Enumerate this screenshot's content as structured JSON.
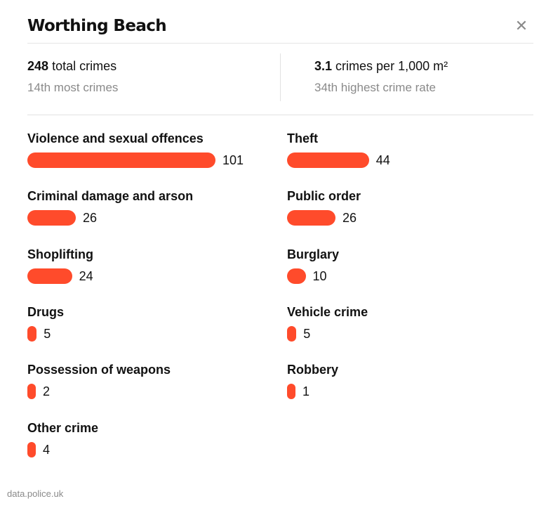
{
  "header": {
    "title": "Worthing Beach",
    "close_icon": "close-icon"
  },
  "stats": {
    "total": {
      "value": "248",
      "label": "total crimes",
      "rank": "14th most crimes"
    },
    "rate": {
      "value": "3.1",
      "label": "crimes per 1,000 m²",
      "rank": "34th highest crime rate"
    }
  },
  "bar_color": "#ff4b2b",
  "categories": [
    {
      "name": "Violence and sexual offences",
      "value": "101"
    },
    {
      "name": "Theft",
      "value": "44"
    },
    {
      "name": "Criminal damage and arson",
      "value": "26"
    },
    {
      "name": "Public order",
      "value": "26"
    },
    {
      "name": "Shoplifting",
      "value": "24"
    },
    {
      "name": "Burglary",
      "value": "10"
    },
    {
      "name": "Drugs",
      "value": "5"
    },
    {
      "name": "Vehicle crime",
      "value": "5"
    },
    {
      "name": "Possession of weapons",
      "value": "2"
    },
    {
      "name": "Robbery",
      "value": "1"
    },
    {
      "name": "Other crime",
      "value": "4"
    }
  ],
  "footer": {
    "source": "data.police.uk"
  }
}
